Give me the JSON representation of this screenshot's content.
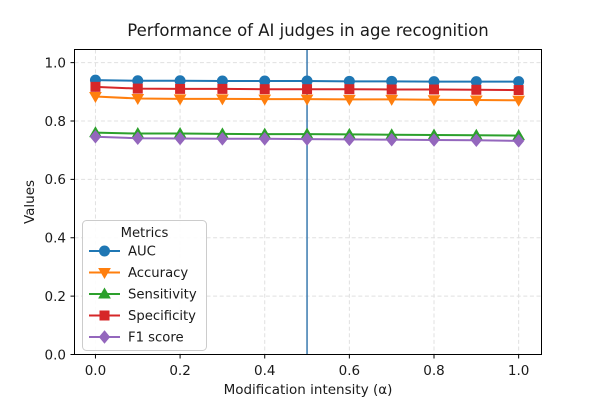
{
  "chart_data": {
    "type": "line",
    "title": "Performance of AI judges in age recognition",
    "xlabel": "Modification intensity (α)",
    "ylabel": "Values",
    "x": [
      0.0,
      0.1,
      0.2,
      0.3,
      0.4,
      0.5,
      0.6,
      0.7,
      0.8,
      0.9,
      1.0
    ],
    "xticks": [
      0.0,
      0.2,
      0.4,
      0.6,
      0.8,
      1.0
    ],
    "yticks": [
      0.0,
      0.2,
      0.4,
      0.6,
      0.8,
      1.0
    ],
    "xlim": [
      -0.0495,
      1.054
    ],
    "ylim": [
      0.0,
      1.045
    ],
    "grid": true,
    "background_color": "#ffffff",
    "vline": {
      "x": 0.5,
      "color": "#4682b4"
    },
    "legend": {
      "title": "Metrics",
      "position": "lower-left",
      "border_color": "#cccccc"
    },
    "series": [
      {
        "name": "AUC",
        "color": "#1f77b4",
        "marker": "circle",
        "values": [
          0.94,
          0.938,
          0.938,
          0.937,
          0.937,
          0.937,
          0.936,
          0.936,
          0.935,
          0.935,
          0.935
        ]
      },
      {
        "name": "Accuracy",
        "color": "#ff7f0e",
        "marker": "triangle-down",
        "values": [
          0.884,
          0.877,
          0.876,
          0.876,
          0.875,
          0.875,
          0.874,
          0.874,
          0.873,
          0.872,
          0.871
        ]
      },
      {
        "name": "Sensitivity",
        "color": "#2ca02c",
        "marker": "triangle-up",
        "values": [
          0.76,
          0.757,
          0.757,
          0.756,
          0.755,
          0.755,
          0.754,
          0.753,
          0.752,
          0.751,
          0.75
        ]
      },
      {
        "name": "Specificity",
        "color": "#d62728",
        "marker": "square",
        "values": [
          0.917,
          0.911,
          0.91,
          0.91,
          0.909,
          0.909,
          0.909,
          0.908,
          0.908,
          0.907,
          0.906
        ]
      },
      {
        "name": "F1 score",
        "color": "#9467bd",
        "marker": "diamond",
        "values": [
          0.746,
          0.741,
          0.74,
          0.739,
          0.739,
          0.738,
          0.737,
          0.736,
          0.735,
          0.734,
          0.732
        ]
      }
    ]
  }
}
